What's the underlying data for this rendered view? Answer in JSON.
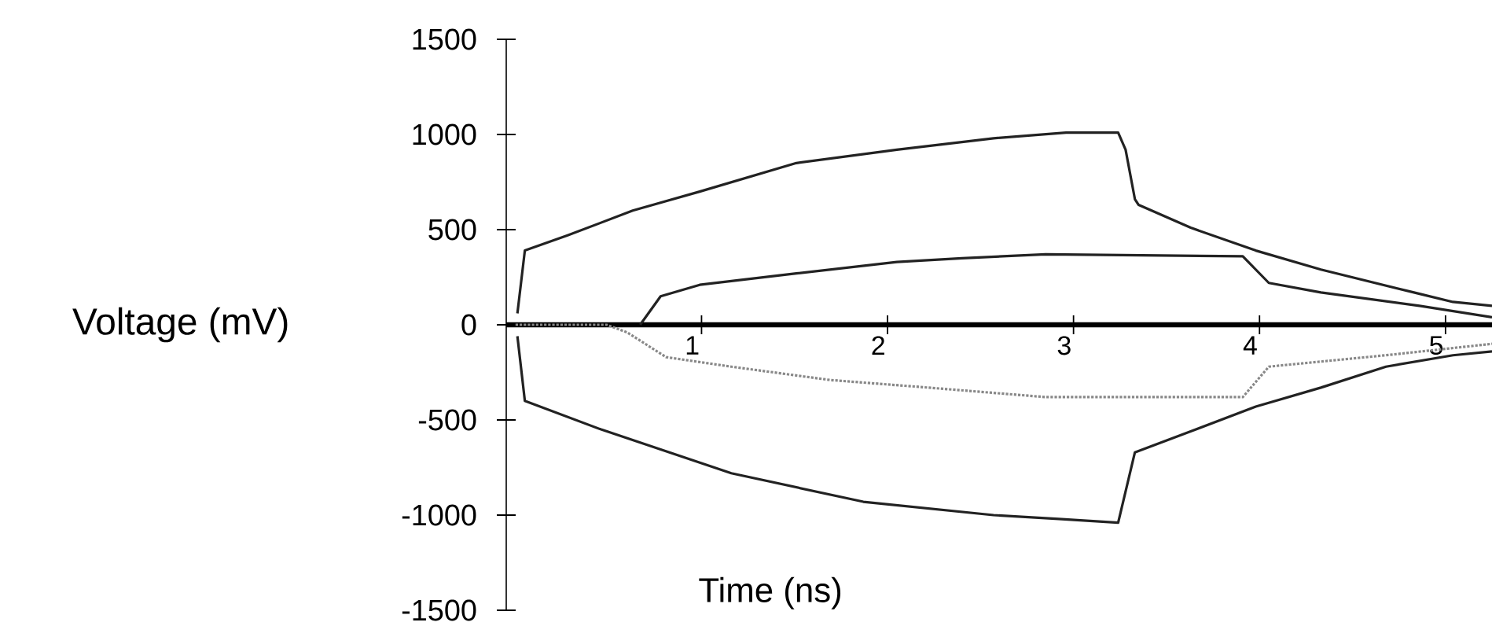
{
  "chart_data": {
    "type": "line",
    "xlabel": "Time (ns)",
    "ylabel": "Voltage (mV)",
    "xlim": [
      -0.05,
      5.25
    ],
    "ylim": [
      -1500,
      1500
    ],
    "xticks": [
      1,
      2,
      3,
      4,
      5
    ],
    "yticks": [
      -1500,
      -1000,
      -500,
      0,
      500,
      1000,
      1500
    ],
    "marker": "none",
    "series": [
      {
        "color": "#222222",
        "line_style": "solid",
        "x": [
          0.01,
          0.05,
          0.28,
          0.63,
          0.99,
          1.51,
          2.05,
          2.57,
          2.96,
          3.24,
          3.28,
          3.33,
          3.35,
          3.63,
          3.98,
          4.33,
          4.83,
          5.04,
          5.25
        ],
        "values": [
          60,
          390,
          470,
          600,
          700,
          850,
          920,
          980,
          1010,
          1010,
          920,
          660,
          630,
          510,
          390,
          290,
          170,
          120,
          100
        ]
      },
      {
        "color": "#222222",
        "line_style": "solid",
        "x": [
          0.67,
          0.78,
          0.99,
          1.51,
          2.05,
          2.4,
          2.85,
          3.91,
          4.05,
          4.33,
          4.86,
          5.25
        ],
        "values": [
          0,
          150,
          210,
          270,
          330,
          350,
          370,
          360,
          220,
          170,
          100,
          40
        ]
      },
      {
        "color": "#222222",
        "line_style": "solid",
        "x": [
          0.01,
          0.05,
          0.46,
          1.16,
          1.87,
          2.57,
          2.92,
          3.24,
          3.33,
          3.63,
          3.98,
          4.33,
          4.68,
          5.04,
          5.25
        ],
        "values": [
          -60,
          -400,
          -550,
          -780,
          -930,
          -1000,
          -1020,
          -1040,
          -670,
          -560,
          -430,
          -330,
          -220,
          -160,
          -140
        ]
      },
      {
        "color": "#888888",
        "line_style": "dotted",
        "x": [
          0,
          0.49,
          0.6,
          0.81,
          1.16,
          1.69,
          2.22,
          2.85,
          3.91,
          4.05,
          4.68,
          5.25
        ],
        "values": [
          0,
          0,
          -40,
          -170,
          -220,
          -290,
          -330,
          -380,
          -380,
          -220,
          -160,
          -100
        ]
      }
    ]
  }
}
